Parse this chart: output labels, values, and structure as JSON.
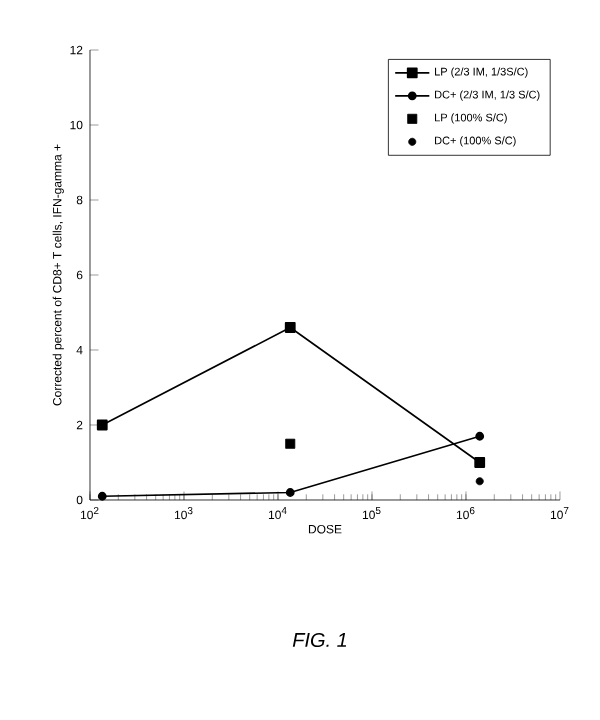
{
  "chart_data": {
    "type": "line",
    "xlabel": "DOSE",
    "ylabel": "Corrected percent of CD8+ T cells, IFN-gamma +",
    "annotations": [
      "FIG. 1"
    ],
    "log": "x",
    "xlim": [
      100,
      10000000
    ],
    "ylim": [
      0,
      12
    ],
    "xticks": [
      {
        "value": 100,
        "label": "10$^{2}$"
      },
      {
        "value": 1000,
        "label": "10$^{3}$"
      },
      {
        "value": 10000,
        "label": "10$^{4}$"
      },
      {
        "value": 100000,
        "label": "10$^{5}$"
      },
      {
        "value": 1000000,
        "label": "10$^{6}$"
      },
      {
        "value": 10000000,
        "label": "10$^{7}$"
      }
    ],
    "yticks": [
      0,
      2,
      4,
      6,
      8,
      10,
      12
    ],
    "legend": "top right",
    "series": [
      {
        "name": "LP (2/3 IM, 1/3S/C)",
        "type": "line",
        "marker": "square",
        "color": "#000000",
        "x": [
          135,
          13500,
          1400000
        ],
        "values": [
          2.0,
          4.6,
          1.0
        ]
      },
      {
        "name": "DC+ (2/3 IM, 1/3 S/C)",
        "type": "line",
        "marker": "circle",
        "color": "#000000",
        "x": [
          135,
          13500,
          1400000
        ],
        "values": [
          0.1,
          0.2,
          1.7
        ]
      },
      {
        "name": "LP (100% S/C)",
        "type": "scatter",
        "marker": "square",
        "color": "#000000",
        "x": [
          13500
        ],
        "values": [
          1.5
        ]
      },
      {
        "name": "DC+ (100% S/C)",
        "type": "scatter",
        "marker": "circle",
        "color": "#000000",
        "x": [
          1400000
        ],
        "values": [
          0.5
        ]
      }
    ]
  }
}
